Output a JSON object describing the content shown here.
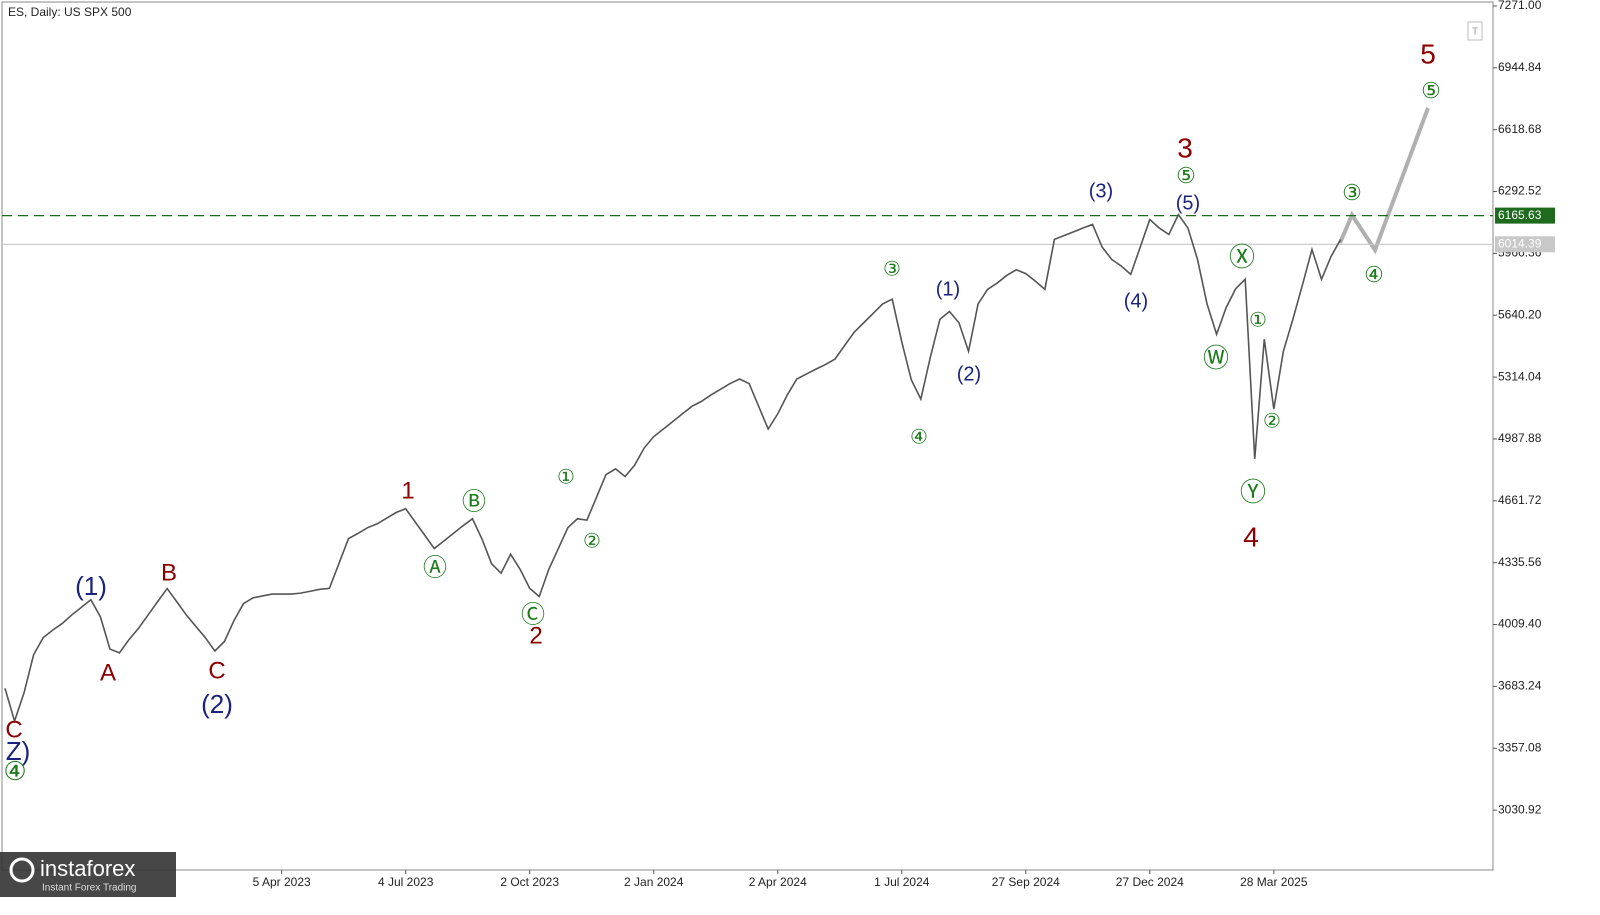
{
  "chart_data": {
    "type": "line",
    "title": "ES, Daily:  US SPX 500",
    "color": "#555555",
    "categories": [
      null,
      null,
      null,
      null,
      null,
      null,
      null,
      null,
      null,
      null,
      null,
      null,
      null,
      null,
      null,
      null,
      null,
      null,
      null,
      null,
      null,
      null,
      null,
      null,
      null,
      null,
      null,
      null,
      null,
      "5 Apr 2023",
      null,
      null,
      null,
      null,
      null,
      null,
      null,
      null,
      null,
      null,
      null,
      null,
      "4 Jul 2023",
      null,
      null,
      null,
      null,
      null,
      null,
      null,
      null,
      null,
      null,
      null,
      null,
      "2 Oct 2023",
      null,
      null,
      null,
      null,
      null,
      null,
      null,
      null,
      null,
      null,
      null,
      null,
      "2 Jan 2024",
      null,
      null,
      null,
      null,
      null,
      null,
      null,
      null,
      null,
      null,
      null,
      null,
      "2 Apr 2024",
      null,
      null,
      null,
      null,
      null,
      null,
      null,
      null,
      null,
      null,
      null,
      null,
      "1 Jul 2024",
      null,
      null,
      null,
      null,
      null,
      null,
      null,
      null,
      null,
      null,
      null,
      null,
      "27 Sep 2024",
      null,
      null,
      null,
      null,
      null,
      null,
      null,
      null,
      null,
      null,
      null,
      null,
      "27 Dec 2024",
      null,
      null,
      null,
      null,
      null,
      null,
      null,
      null,
      null,
      null,
      null,
      null,
      "28 Mar 2025",
      null,
      null,
      null,
      null,
      null,
      null,
      null
    ],
    "values": [
      3673,
      3500,
      3650,
      3850,
      3940,
      3980,
      4015,
      4060,
      4100,
      4140,
      4050,
      3880,
      3860,
      3930,
      3990,
      4060,
      4130,
      4199,
      4130,
      4060,
      4000,
      3940,
      3870,
      3920,
      4030,
      4120,
      4150,
      4160,
      4170,
      4170,
      4170,
      4175,
      4185,
      4195,
      4200,
      4330,
      4462,
      4490,
      4520,
      4540,
      4570,
      4600,
      4620,
      4550,
      4480,
      4410,
      4450,
      4490,
      4530,
      4567,
      4460,
      4330,
      4280,
      4380,
      4300,
      4200,
      4157,
      4300,
      4410,
      4520,
      4567,
      4560,
      4680,
      4800,
      4830,
      4790,
      4850,
      4940,
      5000,
      5040,
      5080,
      5120,
      5160,
      5186,
      5220,
      5250,
      5280,
      5304,
      5280,
      5160,
      5040,
      5120,
      5220,
      5304,
      5330,
      5356,
      5380,
      5409,
      5480,
      5550,
      5600,
      5650,
      5700,
      5725,
      5500,
      5300,
      5198,
      5420,
      5619,
      5660,
      5600,
      5450,
      5700,
      5777,
      5810,
      5850,
      5880,
      5860,
      5820,
      5777,
      6040,
      6060,
      6080,
      6100,
      6119,
      6000,
      5935,
      5900,
      5856,
      6000,
      6145,
      6100,
      6066,
      6171,
      6100,
      5935,
      5700,
      5540,
      5680,
      5780,
      5830,
      4883,
      5514,
      5146,
      5450,
      5619,
      5800,
      5987,
      5830,
      5950,
      6040
    ],
    "ylim": [
      2715,
      7292
    ],
    "yticks": [
      {
        "value": 7271,
        "label": "7271.00"
      },
      {
        "value": 6944.84,
        "label": "6944.84"
      },
      {
        "value": 6618.68,
        "label": "6618.68"
      },
      {
        "value": 6292.52,
        "label": "6292.52"
      },
      {
        "value": 5966.36,
        "label": "5966.36"
      },
      {
        "value": 5640.2,
        "label": "5640.20"
      },
      {
        "value": 5314.04,
        "label": "5314.04"
      },
      {
        "value": 4987.88,
        "label": "4987.88"
      },
      {
        "value": 4661.72,
        "label": "4661.72"
      },
      {
        "value": 4335.56,
        "label": "4335.56"
      },
      {
        "value": 4009.4,
        "label": "4009.40"
      },
      {
        "value": 3683.24,
        "label": "3683.24"
      },
      {
        "value": 3357.08,
        "label": "3357.08"
      },
      {
        "value": 3030.92,
        "label": "3030.92"
      }
    ],
    "grid": false,
    "hlines": [
      {
        "value": 6165.63,
        "color": "#1e6b1e",
        "dashed": true
      },
      {
        "value": 6014.39,
        "color": "#c8c8c8",
        "dashed": false
      }
    ],
    "annotations": [
      {
        "text": "(1)",
        "color": "#1a237e"
      },
      {
        "text": "A",
        "color": "#8b0000"
      },
      {
        "text": "B",
        "color": "#8b0000"
      },
      {
        "text": "C",
        "color": "#8b0000"
      },
      {
        "text": "(2)",
        "color": "#1a237e"
      },
      {
        "text": "C",
        "color": "#8b0000"
      },
      {
        "text": "Z)",
        "color": "#1a237e"
      },
      {
        "text": "④",
        "color": "#1b7a1b"
      },
      {
        "text": "1",
        "color": "#8b0000"
      },
      {
        "text": "Ⓐ",
        "color": "#1b7a1b"
      },
      {
        "text": "Ⓑ",
        "color": "#1b7a1b"
      },
      {
        "text": "Ⓒ",
        "color": "#1b7a1b"
      },
      {
        "text": "2",
        "color": "#8b0000"
      },
      {
        "text": "①",
        "color": "#1b7a1b"
      },
      {
        "text": "②",
        "color": "#1b7a1b"
      },
      {
        "text": "③",
        "color": "#1b7a1b"
      },
      {
        "text": "④",
        "color": "#1b7a1b"
      },
      {
        "text": "(1)",
        "color": "#1a237e"
      },
      {
        "text": "(2)",
        "color": "#1a237e"
      },
      {
        "text": "(3)",
        "color": "#1a237e"
      },
      {
        "text": "(4)",
        "color": "#1a237e"
      },
      {
        "text": "(5)",
        "color": "#1a237e"
      },
      {
        "text": "⑤",
        "color": "#1b7a1b"
      },
      {
        "text": "3",
        "color": "#8b0000"
      },
      {
        "text": "Ⓦ",
        "color": "#1b7a1b"
      },
      {
        "text": "Ⓧ",
        "color": "#1b7a1b"
      },
      {
        "text": "①",
        "color": "#1b7a1b"
      },
      {
        "text": "②",
        "color": "#1b7a1b"
      },
      {
        "text": "Ⓨ",
        "color": "#1b7a1b"
      },
      {
        "text": "4",
        "color": "#8b0000"
      },
      {
        "text": "③",
        "color": "#1b7a1b"
      },
      {
        "text": "④",
        "color": "#1b7a1b"
      },
      {
        "text": "⑤",
        "color": "#1b7a1b"
      },
      {
        "text": "5",
        "color": "#8b0000"
      }
    ]
  },
  "logo": {
    "name": "instaforex",
    "tagline": "Instant Forex Trading"
  }
}
